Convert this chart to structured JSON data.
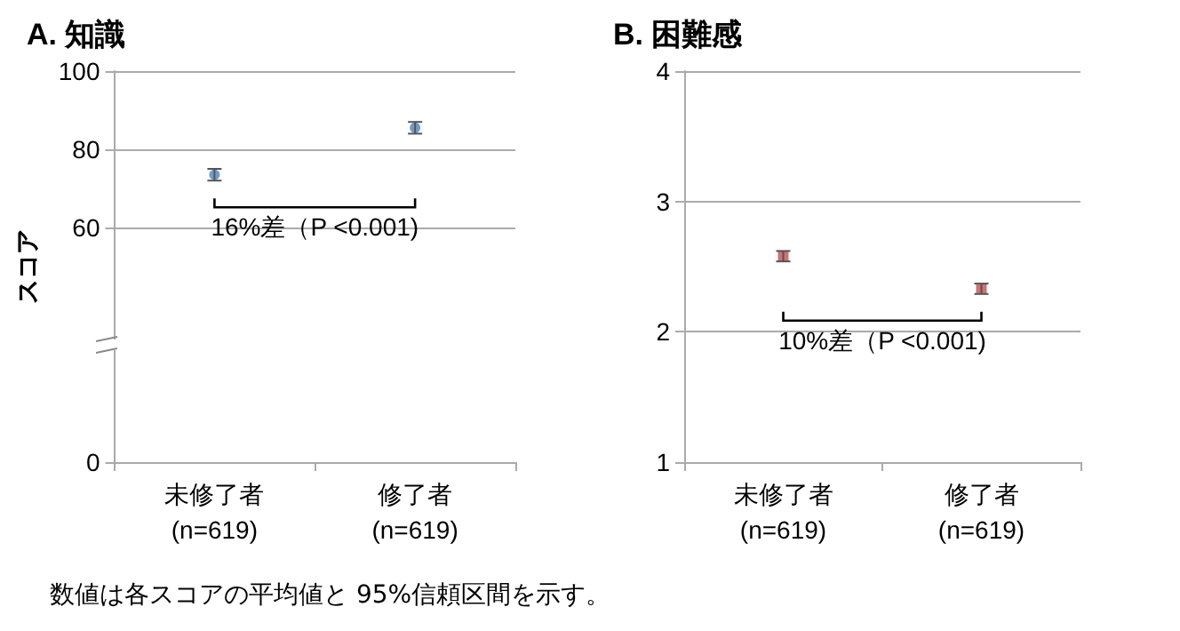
{
  "chart_data": [
    {
      "type": "scatter",
      "title": "A. 知識",
      "ylabel": "スコア",
      "categories": [
        "未修了者\n(n=619)",
        "修了者\n(n=619)"
      ],
      "series": [
        {
          "color": "#4f81bd",
          "values": [
            73.5,
            85.5
          ],
          "errors": [
            1.5,
            1.5
          ]
        }
      ],
      "ylim": [
        0,
        100
      ],
      "yticks": [
        0,
        60,
        80,
        100
      ],
      "grid": "y",
      "marker": "circle",
      "annotations": [
        "16%差（P <0.001)",
        "数値は各スコアの平均値と 95%信頼区間を示す。"
      ]
    },
    {
      "type": "scatter",
      "title": "B. 困難感",
      "categories": [
        "未修了者\n(n=619)",
        "修了者\n(n=619)"
      ],
      "series": [
        {
          "color": "#c0504d",
          "values": [
            2.58,
            2.33
          ],
          "errors": [
            0.04,
            0.04
          ]
        }
      ],
      "ylim": [
        1,
        4
      ],
      "yticks": [
        1,
        2,
        3,
        4
      ],
      "grid": "y",
      "marker": "square",
      "annotations": [
        "10%差（P <0.001)"
      ]
    }
  ]
}
